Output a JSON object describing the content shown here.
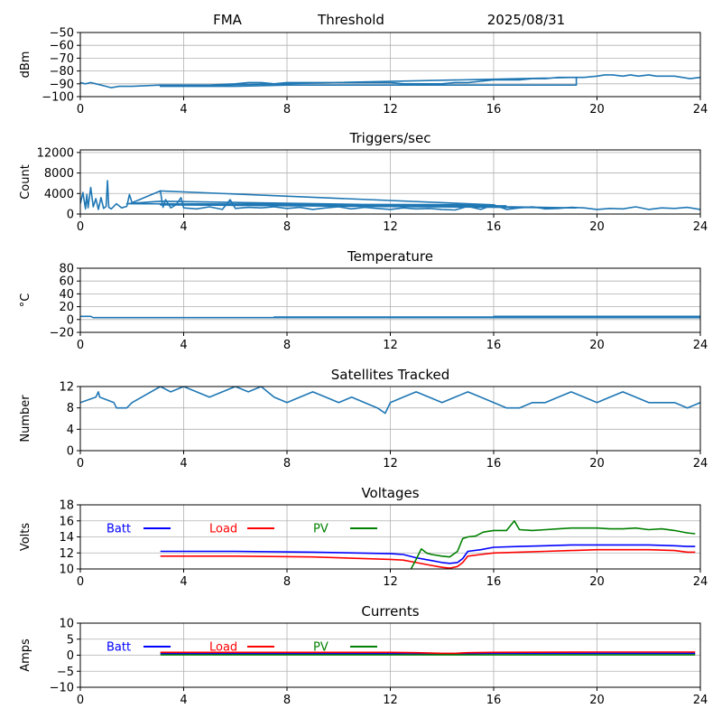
{
  "header": {
    "left": "FMA",
    "center": "Threshold",
    "right": "2025/08/31"
  },
  "colors": {
    "series_default": "#1f77b4",
    "batt": "#0000ff",
    "load": "#ff0000",
    "pv": "#008000",
    "grid": "#b0b0b0"
  },
  "chart_data": [
    {
      "id": "threshold",
      "type": "line",
      "title": "",
      "xlabel": "",
      "ylabel": "dBm",
      "xlim": [
        0,
        24
      ],
      "ylim": [
        -100,
        -50
      ],
      "xticks": [
        0,
        4,
        8,
        12,
        16,
        20,
        24
      ],
      "yticks": [
        -100,
        -90,
        -80,
        -70,
        -60,
        -50
      ],
      "ytick_labels": [
        "−100",
        "−90",
        "−80",
        "−70",
        "−60",
        "−50"
      ],
      "grid": true,
      "series": [
        {
          "color": "#1f77b4",
          "x": [
            0,
            0.2,
            0.4,
            0.6,
            0.8,
            1.0,
            1.2,
            1.5,
            1.8,
            2.0,
            3.1,
            3.5,
            4,
            5,
            6,
            6.5,
            7,
            7.5,
            8,
            9,
            10,
            11,
            12,
            12.5,
            13,
            14,
            14.5,
            15,
            15.5,
            16,
            16.5,
            17,
            17.5,
            18,
            18.5,
            19,
            19.2,
            3.1,
            3.5,
            4,
            6,
            8,
            10,
            12,
            14,
            16,
            18,
            19.2,
            19.2,
            19.5,
            20,
            20.3,
            20.6,
            21,
            21.3,
            21.6,
            22,
            22.3,
            22.6,
            23,
            23.3,
            23.6,
            24
          ],
          "y": [
            -89,
            -90,
            -89,
            -90,
            -91,
            -92,
            -93,
            -92,
            -92,
            -92,
            -91,
            -91,
            -91,
            -91,
            -90,
            -89,
            -89,
            -90,
            -89,
            -89,
            -89,
            -89,
            -89,
            -90,
            -90,
            -90,
            -89,
            -89,
            -88,
            -87,
            -87,
            -87,
            -86,
            -86,
            -85,
            -85,
            -85,
            -92,
            -92,
            -92,
            -92,
            -91,
            -91,
            -91,
            -91,
            -91,
            -91,
            -91,
            -85,
            -85,
            -84,
            -83,
            -83,
            -84,
            -83,
            -84,
            -83,
            -84,
            -84,
            -84,
            -85,
            -86,
            -85
          ]
        }
      ]
    },
    {
      "id": "triggers",
      "type": "line",
      "title": "Triggers/sec",
      "xlabel": "",
      "ylabel": "Count",
      "xlim": [
        0,
        24
      ],
      "ylim": [
        0,
        12500
      ],
      "xticks": [
        0,
        4,
        8,
        12,
        16,
        20,
        24
      ],
      "yticks": [
        0,
        4000,
        8000,
        12000
      ],
      "ytick_labels": [
        "0",
        "4000",
        "8000",
        "12000"
      ],
      "grid": true,
      "series": [
        {
          "color": "#1f77b4",
          "x": [
            0,
            0.1,
            0.2,
            0.25,
            0.3,
            0.4,
            0.5,
            0.6,
            0.7,
            0.8,
            0.9,
            1.0,
            1.05,
            1.1,
            1.2,
            1.4,
            1.6,
            1.8,
            1.9,
            2.0,
            3.1,
            3.2,
            3.3,
            3.5,
            3.7,
            3.9,
            4.0,
            4.5,
            5.0,
            5.5,
            5.8,
            6.0,
            6.5,
            7.0,
            7.5,
            8.0,
            8.5,
            9.0,
            9.5,
            10.0,
            10.5,
            11.0,
            11.5,
            12.0,
            12.5,
            13.0,
            13.5,
            14.0,
            14.5,
            15.0,
            15.5,
            16.0,
            16.5,
            17.0,
            17.5,
            18.0,
            18.5,
            19.0,
            19.5,
            20.0,
            20.5,
            21.0,
            21.5,
            22.0,
            22.5,
            23.0,
            23.5,
            24.0
          ],
          "y": [
            2000,
            4200,
            1000,
            3800,
            1200,
            5200,
            1400,
            3000,
            900,
            3200,
            1100,
            1500,
            6500,
            1300,
            1000,
            2000,
            1200,
            1500,
            3800,
            2200,
            4500,
            1300,
            2800,
            1200,
            1800,
            3200,
            1200,
            1000,
            1400,
            900,
            2800,
            1100,
            1300,
            1200,
            1400,
            1100,
            1300,
            900,
            1200,
            1400,
            1000,
            1300,
            1100,
            900,
            1200,
            1000,
            1100,
            900,
            800,
            1500,
            900,
            1800,
            900,
            1200,
            1400,
            1000,
            1100,
            1300,
            1200,
            900,
            1100,
            1000,
            1400,
            900,
            1200,
            1100,
            1300,
            900
          ]
        },
        {
          "color": "#1f77b4",
          "x": [
            3.1,
            16.0,
            1.8,
            3.1,
            19.2,
            3.1,
            16.5
          ],
          "y": [
            4500,
            1800,
            2000,
            2500,
            1200,
            1800,
            1600
          ]
        }
      ]
    },
    {
      "id": "temperature",
      "type": "line",
      "title": "Temperature",
      "xlabel": "",
      "ylabel": "°C",
      "xlim": [
        0,
        24
      ],
      "ylim": [
        -20,
        80
      ],
      "xticks": [
        0,
        4,
        8,
        12,
        16,
        20,
        24
      ],
      "yticks": [
        -20,
        0,
        20,
        40,
        60,
        80
      ],
      "ytick_labels": [
        "−20",
        "0",
        "20",
        "40",
        "60",
        "80"
      ],
      "grid": true,
      "series": [
        {
          "color": "#1f77b4",
          "x": [
            0,
            0.4,
            0.5,
            24,
            24,
            7.5,
            7.5,
            16,
            16,
            19.2,
            19.2,
            16,
            16,
            24
          ],
          "y": [
            5,
            5,
            3,
            3,
            4,
            4,
            3,
            3,
            4,
            4,
            5,
            5,
            5,
            5
          ]
        }
      ]
    },
    {
      "id": "satellites",
      "type": "line",
      "title": "Satellites Tracked",
      "xlabel": "",
      "ylabel": "Number",
      "xlim": [
        0,
        24
      ],
      "ylim": [
        0,
        12
      ],
      "xticks": [
        0,
        4,
        8,
        12,
        16,
        20,
        24
      ],
      "yticks": [
        0,
        4,
        8,
        12
      ],
      "ytick_labels": [
        "0",
        "4",
        "8",
        "12"
      ],
      "grid": true,
      "series": [
        {
          "color": "#1f77b4",
          "x": [
            0,
            0.6,
            0.7,
            0.75,
            1.3,
            1.4,
            1.8,
            2.0,
            3.1,
            3.5,
            4.0,
            4.5,
            5.0,
            5.5,
            6.0,
            6.5,
            7.0,
            7.5,
            8.0,
            8.5,
            9.0,
            9.5,
            10.0,
            10.5,
            11.0,
            11.5,
            11.8,
            12.0,
            12.5,
            13.0,
            13.5,
            14.0,
            14.5,
            15.0,
            15.5,
            16.0,
            16.5,
            17.0,
            17.5,
            18.0,
            18.5,
            19.0,
            19.5,
            20.0,
            20.5,
            21.0,
            21.5,
            22.0,
            22.5,
            23.0,
            23.5,
            24.0
          ],
          "y": [
            9,
            10,
            11,
            10,
            9,
            8,
            8,
            9,
            12,
            11,
            12,
            11,
            10,
            11,
            12,
            11,
            12,
            10,
            9,
            10,
            11,
            10,
            9,
            10,
            9,
            8,
            7,
            9,
            10,
            11,
            10,
            9,
            10,
            11,
            10,
            9,
            8,
            8,
            9,
            9,
            10,
            11,
            10,
            9,
            10,
            11,
            10,
            9,
            9,
            9,
            8,
            9
          ]
        }
      ]
    },
    {
      "id": "voltages",
      "type": "line",
      "title": "Voltages",
      "xlabel": "",
      "ylabel": "Volts",
      "xlim": [
        0,
        24
      ],
      "ylim": [
        10,
        18
      ],
      "xticks": [
        0,
        4,
        8,
        12,
        16,
        20,
        24
      ],
      "yticks": [
        10,
        12,
        14,
        16,
        18
      ],
      "ytick_labels": [
        "10",
        "12",
        "14",
        "16",
        "18"
      ],
      "grid": true,
      "legend": [
        "Batt",
        "Load",
        "PV"
      ],
      "series": [
        {
          "name": "Batt",
          "color": "#0000ff",
          "x": [
            3.1,
            6,
            9,
            12,
            12.5,
            13,
            13.5,
            14,
            14.3,
            14.6,
            14.8,
            15.0,
            15.5,
            16,
            17,
            18,
            19,
            20,
            21,
            22,
            23,
            23.5,
            23.8
          ],
          "y": [
            12.2,
            12.2,
            12.1,
            11.9,
            11.8,
            11.4,
            11.1,
            10.8,
            10.7,
            10.8,
            11.3,
            12.2,
            12.4,
            12.7,
            12.8,
            12.9,
            13.0,
            13.0,
            13.0,
            13.0,
            12.9,
            12.8,
            12.8
          ]
        },
        {
          "name": "Load",
          "color": "#ff0000",
          "x": [
            3.1,
            6,
            9,
            12,
            12.5,
            13,
            13.5,
            14,
            14.3,
            14.6,
            14.8,
            15.0,
            15.5,
            16,
            17,
            18,
            19,
            20,
            21,
            22,
            23,
            23.5,
            23.8
          ],
          "y": [
            11.6,
            11.6,
            11.5,
            11.2,
            11.1,
            10.8,
            10.5,
            10.2,
            10.1,
            10.3,
            10.8,
            11.6,
            11.8,
            12.0,
            12.1,
            12.2,
            12.3,
            12.4,
            12.4,
            12.4,
            12.3,
            12.1,
            12.1
          ]
        },
        {
          "name": "PV",
          "color": "#008000",
          "x": [
            12.8,
            13.0,
            13.2,
            13.4,
            13.6,
            14.0,
            14.3,
            14.6,
            14.8,
            15.0,
            15.3,
            15.6,
            16.0,
            16.5,
            16.8,
            17.0,
            17.5,
            18,
            18.5,
            19,
            19.5,
            20,
            20.5,
            21,
            21.5,
            22,
            22.5,
            23,
            23.5,
            23.8
          ],
          "y": [
            10.0,
            11.2,
            12.5,
            12.0,
            11.8,
            11.6,
            11.5,
            12.2,
            13.8,
            14.0,
            14.1,
            14.6,
            14.8,
            14.8,
            16.0,
            14.9,
            14.8,
            14.9,
            15.0,
            15.1,
            15.1,
            15.1,
            15.0,
            15.0,
            15.1,
            14.9,
            15.0,
            14.8,
            14.5,
            14.4
          ]
        }
      ]
    },
    {
      "id": "currents",
      "type": "line",
      "title": "Currents",
      "xlabel": "",
      "ylabel": "Amps",
      "xlim": [
        0,
        24
      ],
      "ylim": [
        -10,
        10
      ],
      "xticks": [
        0,
        4,
        8,
        12,
        16,
        20,
        24
      ],
      "yticks": [
        -10,
        -5,
        0,
        5,
        10
      ],
      "ytick_labels": [
        "−10",
        "−5",
        "0",
        "5",
        "10"
      ],
      "grid": true,
      "legend": [
        "Batt",
        "Load",
        "PV"
      ],
      "series": [
        {
          "name": "Batt",
          "color": "#0000ff",
          "x": [
            3.1,
            12,
            13,
            14,
            14.5,
            15,
            16,
            20,
            23.8
          ],
          "y": [
            0.5,
            0.5,
            0.4,
            0.3,
            0.3,
            0.5,
            0.6,
            0.6,
            0.6
          ]
        },
        {
          "name": "Load",
          "color": "#ff0000",
          "x": [
            3.1,
            12,
            13,
            14,
            14.5,
            15,
            16,
            20,
            23.8
          ],
          "y": [
            0.9,
            0.9,
            0.8,
            0.6,
            0.6,
            0.8,
            0.9,
            1.0,
            1.0
          ]
        },
        {
          "name": "PV",
          "color": "#008000",
          "x": [
            3.1,
            12,
            16,
            20,
            23.8
          ],
          "y": [
            0.1,
            0.1,
            0.1,
            0.1,
            0.1
          ]
        }
      ]
    }
  ]
}
